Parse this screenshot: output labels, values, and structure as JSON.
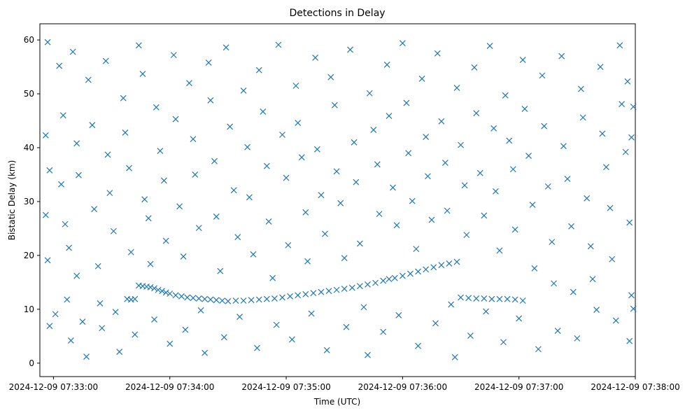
{
  "chart_data": {
    "type": "scatter",
    "title": "Detections in Delay",
    "xlabel": "Time (UTC)",
    "ylabel": "Bistatic Delay (km)",
    "marker": "x",
    "color": "#1f77b4",
    "x_unit": "time",
    "xlim": [
      "2024-12-09 07:32:53",
      "2024-12-09 07:38:00"
    ],
    "ylim": [
      -2.5,
      63
    ],
    "x_ticks": [
      "2024-12-09 07:33:00",
      "2024-12-09 07:34:00",
      "2024-12-09 07:35:00",
      "2024-12-09 07:36:00",
      "2024-12-09 07:37:00",
      "2024-12-09 07:38:00"
    ],
    "y_ticks": [
      0,
      10,
      20,
      30,
      40,
      50,
      60
    ],
    "grid": false,
    "series": [
      {
        "points_track": [
          [
            "07:33:38",
            11.9
          ],
          [
            "07:33:40",
            11.8
          ],
          [
            "07:33:42",
            11.9
          ],
          [
            "07:33:44",
            14.4
          ],
          [
            "07:33:46",
            14.3
          ],
          [
            "07:33:48",
            14.2
          ],
          [
            "07:33:50",
            14.1
          ],
          [
            "07:33:52",
            13.9
          ],
          [
            "07:33:54",
            13.6
          ],
          [
            "07:33:56",
            13.4
          ],
          [
            "07:33:58",
            13.1
          ],
          [
            "07:34:00",
            12.9
          ],
          [
            "07:34:03",
            12.6
          ],
          [
            "07:34:06",
            12.4
          ],
          [
            "07:34:09",
            12.2
          ],
          [
            "07:34:12",
            12.1
          ],
          [
            "07:34:15",
            12.0
          ],
          [
            "07:34:18",
            11.9
          ],
          [
            "07:34:21",
            11.8
          ],
          [
            "07:34:24",
            11.7
          ],
          [
            "07:34:27",
            11.6
          ],
          [
            "07:34:30",
            11.5
          ],
          [
            "07:34:34",
            11.6
          ],
          [
            "07:34:38",
            11.6
          ],
          [
            "07:34:42",
            11.7
          ],
          [
            "07:34:46",
            11.8
          ],
          [
            "07:34:50",
            11.9
          ],
          [
            "07:34:54",
            12.0
          ],
          [
            "07:34:58",
            12.2
          ],
          [
            "07:35:02",
            12.4
          ],
          [
            "07:35:06",
            12.6
          ],
          [
            "07:35:10",
            12.8
          ],
          [
            "07:35:14",
            13.0
          ],
          [
            "07:35:18",
            13.2
          ],
          [
            "07:35:22",
            13.4
          ],
          [
            "07:35:26",
            13.6
          ],
          [
            "07:35:30",
            13.8
          ],
          [
            "07:35:34",
            14.0
          ],
          [
            "07:35:38",
            14.3
          ],
          [
            "07:35:42",
            14.6
          ],
          [
            "07:35:46",
            14.9
          ],
          [
            "07:35:50",
            15.3
          ],
          [
            "07:35:53",
            15.6
          ],
          [
            "07:35:56",
            15.8
          ],
          [
            "07:36:00",
            16.2
          ],
          [
            "07:36:04",
            16.6
          ],
          [
            "07:36:08",
            17.0
          ],
          [
            "07:36:12",
            17.4
          ],
          [
            "07:36:16",
            17.8
          ],
          [
            "07:36:20",
            18.2
          ],
          [
            "07:36:24",
            18.5
          ],
          [
            "07:36:28",
            18.8
          ],
          [
            "07:36:30",
            12.2
          ],
          [
            "07:36:34",
            12.1
          ],
          [
            "07:36:38",
            12.0
          ],
          [
            "07:36:42",
            12.0
          ],
          [
            "07:36:46",
            11.9
          ],
          [
            "07:36:50",
            11.9
          ],
          [
            "07:36:54",
            11.9
          ],
          [
            "07:36:58",
            11.8
          ],
          [
            "07:37:02",
            11.6
          ]
        ],
        "points_clutter": [
          [
            "07:32:57",
            59.6
          ],
          [
            "07:32:56",
            42.3
          ],
          [
            "07:32:58",
            35.8
          ],
          [
            "07:32:56",
            27.5
          ],
          [
            "07:32:57",
            19.1
          ],
          [
            "07:32:58",
            6.9
          ],
          [
            "07:33:01",
            9.1
          ],
          [
            "07:33:03",
            55.2
          ],
          [
            "07:33:05",
            46.0
          ],
          [
            "07:33:04",
            33.2
          ],
          [
            "07:33:06",
            25.8
          ],
          [
            "07:33:08",
            21.4
          ],
          [
            "07:33:07",
            11.8
          ],
          [
            "07:33:09",
            4.2
          ],
          [
            "07:33:10",
            57.8
          ],
          [
            "07:33:12",
            40.8
          ],
          [
            "07:33:13",
            34.9
          ],
          [
            "07:33:12",
            16.2
          ],
          [
            "07:33:15",
            7.7
          ],
          [
            "07:33:17",
            1.2
          ],
          [
            "07:33:18",
            52.6
          ],
          [
            "07:33:20",
            44.2
          ],
          [
            "07:33:21",
            28.6
          ],
          [
            "07:33:23",
            18.0
          ],
          [
            "07:33:24",
            11.1
          ],
          [
            "07:33:25",
            6.5
          ],
          [
            "07:33:27",
            56.1
          ],
          [
            "07:33:28",
            38.7
          ],
          [
            "07:33:29",
            31.6
          ],
          [
            "07:33:31",
            24.5
          ],
          [
            "07:33:32",
            9.5
          ],
          [
            "07:33:34",
            2.1
          ],
          [
            "07:33:36",
            49.2
          ],
          [
            "07:33:37",
            42.8
          ],
          [
            "07:33:39",
            36.2
          ],
          [
            "07:33:40",
            20.6
          ],
          [
            "07:33:42",
            5.3
          ],
          [
            "07:33:44",
            59.0
          ],
          [
            "07:33:46",
            53.7
          ],
          [
            "07:33:47",
            30.4
          ],
          [
            "07:33:49",
            26.9
          ],
          [
            "07:33:50",
            18.4
          ],
          [
            "07:33:52",
            8.1
          ],
          [
            "07:33:53",
            47.5
          ],
          [
            "07:33:55",
            39.4
          ],
          [
            "07:33:57",
            33.9
          ],
          [
            "07:33:58",
            22.7
          ],
          [
            "07:34:00",
            3.6
          ],
          [
            "07:34:02",
            57.2
          ],
          [
            "07:34:03",
            45.3
          ],
          [
            "07:34:05",
            29.1
          ],
          [
            "07:34:07",
            19.8
          ],
          [
            "07:34:08",
            6.2
          ],
          [
            "07:34:10",
            52.0
          ],
          [
            "07:34:12",
            41.6
          ],
          [
            "07:34:13",
            35.0
          ],
          [
            "07:34:15",
            25.1
          ],
          [
            "07:34:16",
            9.8
          ],
          [
            "07:34:18",
            1.9
          ],
          [
            "07:34:20",
            55.8
          ],
          [
            "07:34:21",
            48.8
          ],
          [
            "07:34:23",
            37.5
          ],
          [
            "07:34:24",
            27.2
          ],
          [
            "07:34:26",
            17.1
          ],
          [
            "07:34:28",
            4.8
          ],
          [
            "07:34:29",
            58.6
          ],
          [
            "07:34:31",
            43.9
          ],
          [
            "07:34:33",
            32.1
          ],
          [
            "07:34:35",
            23.4
          ],
          [
            "07:34:36",
            8.6
          ],
          [
            "07:34:38",
            50.6
          ],
          [
            "07:34:40",
            40.1
          ],
          [
            "07:34:41",
            30.8
          ],
          [
            "07:34:43",
            20.2
          ],
          [
            "07:34:45",
            2.8
          ],
          [
            "07:34:46",
            54.4
          ],
          [
            "07:34:48",
            46.7
          ],
          [
            "07:34:50",
            36.6
          ],
          [
            "07:34:51",
            26.3
          ],
          [
            "07:34:53",
            15.8
          ],
          [
            "07:34:55",
            7.1
          ],
          [
            "07:34:56",
            59.1
          ],
          [
            "07:34:58",
            42.4
          ],
          [
            "07:35:00",
            34.4
          ],
          [
            "07:35:01",
            21.9
          ],
          [
            "07:35:03",
            4.4
          ],
          [
            "07:35:05",
            51.5
          ],
          [
            "07:35:06",
            44.6
          ],
          [
            "07:35:08",
            38.2
          ],
          [
            "07:35:10",
            28.0
          ],
          [
            "07:35:11",
            18.9
          ],
          [
            "07:35:13",
            9.2
          ],
          [
            "07:35:15",
            56.7
          ],
          [
            "07:35:16",
            39.7
          ],
          [
            "07:35:18",
            31.2
          ],
          [
            "07:35:20",
            24.0
          ],
          [
            "07:35:21",
            2.4
          ],
          [
            "07:35:23",
            53.1
          ],
          [
            "07:35:25",
            47.9
          ],
          [
            "07:35:26",
            35.6
          ],
          [
            "07:35:28",
            29.7
          ],
          [
            "07:35:30",
            19.5
          ],
          [
            "07:35:31",
            6.7
          ],
          [
            "07:35:33",
            58.2
          ],
          [
            "07:35:35",
            41.0
          ],
          [
            "07:35:36",
            33.6
          ],
          [
            "07:35:38",
            22.2
          ],
          [
            "07:35:40",
            10.4
          ],
          [
            "07:35:42",
            1.5
          ],
          [
            "07:35:43",
            50.1
          ],
          [
            "07:35:45",
            43.3
          ],
          [
            "07:35:47",
            36.9
          ],
          [
            "07:35:48",
            27.7
          ],
          [
            "07:35:50",
            5.8
          ],
          [
            "07:35:52",
            55.4
          ],
          [
            "07:35:53",
            45.9
          ],
          [
            "07:35:55",
            32.6
          ],
          [
            "07:35:57",
            25.6
          ],
          [
            "07:35:58",
            8.9
          ],
          [
            "07:36:00",
            59.4
          ],
          [
            "07:36:02",
            48.3
          ],
          [
            "07:36:03",
            39.0
          ],
          [
            "07:36:05",
            30.1
          ],
          [
            "07:36:07",
            21.2
          ],
          [
            "07:36:08",
            3.2
          ],
          [
            "07:36:10",
            52.8
          ],
          [
            "07:36:12",
            42.0
          ],
          [
            "07:36:13",
            34.7
          ],
          [
            "07:36:15",
            26.6
          ],
          [
            "07:36:17",
            7.4
          ],
          [
            "07:36:18",
            57.5
          ],
          [
            "07:36:20",
            44.9
          ],
          [
            "07:36:22",
            37.2
          ],
          [
            "07:36:23",
            28.3
          ],
          [
            "07:36:25",
            10.9
          ],
          [
            "07:36:27",
            1.1
          ],
          [
            "07:36:28",
            51.1
          ],
          [
            "07:36:30",
            40.5
          ],
          [
            "07:36:32",
            33.0
          ],
          [
            "07:36:33",
            23.8
          ],
          [
            "07:36:35",
            5.1
          ],
          [
            "07:36:37",
            54.9
          ],
          [
            "07:36:38",
            46.4
          ],
          [
            "07:36:40",
            35.3
          ],
          [
            "07:36:42",
            27.4
          ],
          [
            "07:36:43",
            9.6
          ],
          [
            "07:36:45",
            58.9
          ],
          [
            "07:36:47",
            43.6
          ],
          [
            "07:36:48",
            31.9
          ],
          [
            "07:36:50",
            20.9
          ],
          [
            "07:36:52",
            3.9
          ],
          [
            "07:36:53",
            49.7
          ],
          [
            "07:36:55",
            41.3
          ],
          [
            "07:36:57",
            36.0
          ],
          [
            "07:36:58",
            24.8
          ],
          [
            "07:37:00",
            8.3
          ],
          [
            "07:37:02",
            56.3
          ],
          [
            "07:37:03",
            47.2
          ],
          [
            "07:37:05",
            38.5
          ],
          [
            "07:37:07",
            29.4
          ],
          [
            "07:37:08",
            17.6
          ],
          [
            "07:37:10",
            2.6
          ],
          [
            "07:37:12",
            53.4
          ],
          [
            "07:37:13",
            44.0
          ],
          [
            "07:37:15",
            32.8
          ],
          [
            "07:37:17",
            22.5
          ],
          [
            "07:37:18",
            14.8
          ],
          [
            "07:37:20",
            6.0
          ],
          [
            "07:37:22",
            57.0
          ],
          [
            "07:37:23",
            40.3
          ],
          [
            "07:37:25",
            34.2
          ],
          [
            "07:37:27",
            25.4
          ],
          [
            "07:37:28",
            13.2
          ],
          [
            "07:37:30",
            4.6
          ],
          [
            "07:37:32",
            50.9
          ],
          [
            "07:37:33",
            45.6
          ],
          [
            "07:37:35",
            30.6
          ],
          [
            "07:37:37",
            21.7
          ],
          [
            "07:37:38",
            15.6
          ],
          [
            "07:37:40",
            9.9
          ],
          [
            "07:37:42",
            55.0
          ],
          [
            "07:37:43",
            42.6
          ],
          [
            "07:37:45",
            36.4
          ],
          [
            "07:37:47",
            28.8
          ],
          [
            "07:37:48",
            19.3
          ],
          [
            "07:37:50",
            7.9
          ],
          [
            "07:37:52",
            59.0
          ],
          [
            "07:37:53",
            48.1
          ],
          [
            "07:37:55",
            39.2
          ],
          [
            "07:37:57",
            26.1
          ],
          [
            "07:37:58",
            12.6
          ],
          [
            "07:37:57",
            4.1
          ],
          [
            "07:37:56",
            52.3
          ],
          [
            "07:37:58",
            41.9
          ],
          [
            "07:37:59",
            10.1
          ],
          [
            "07:37:59",
            47.6
          ]
        ]
      }
    ]
  }
}
